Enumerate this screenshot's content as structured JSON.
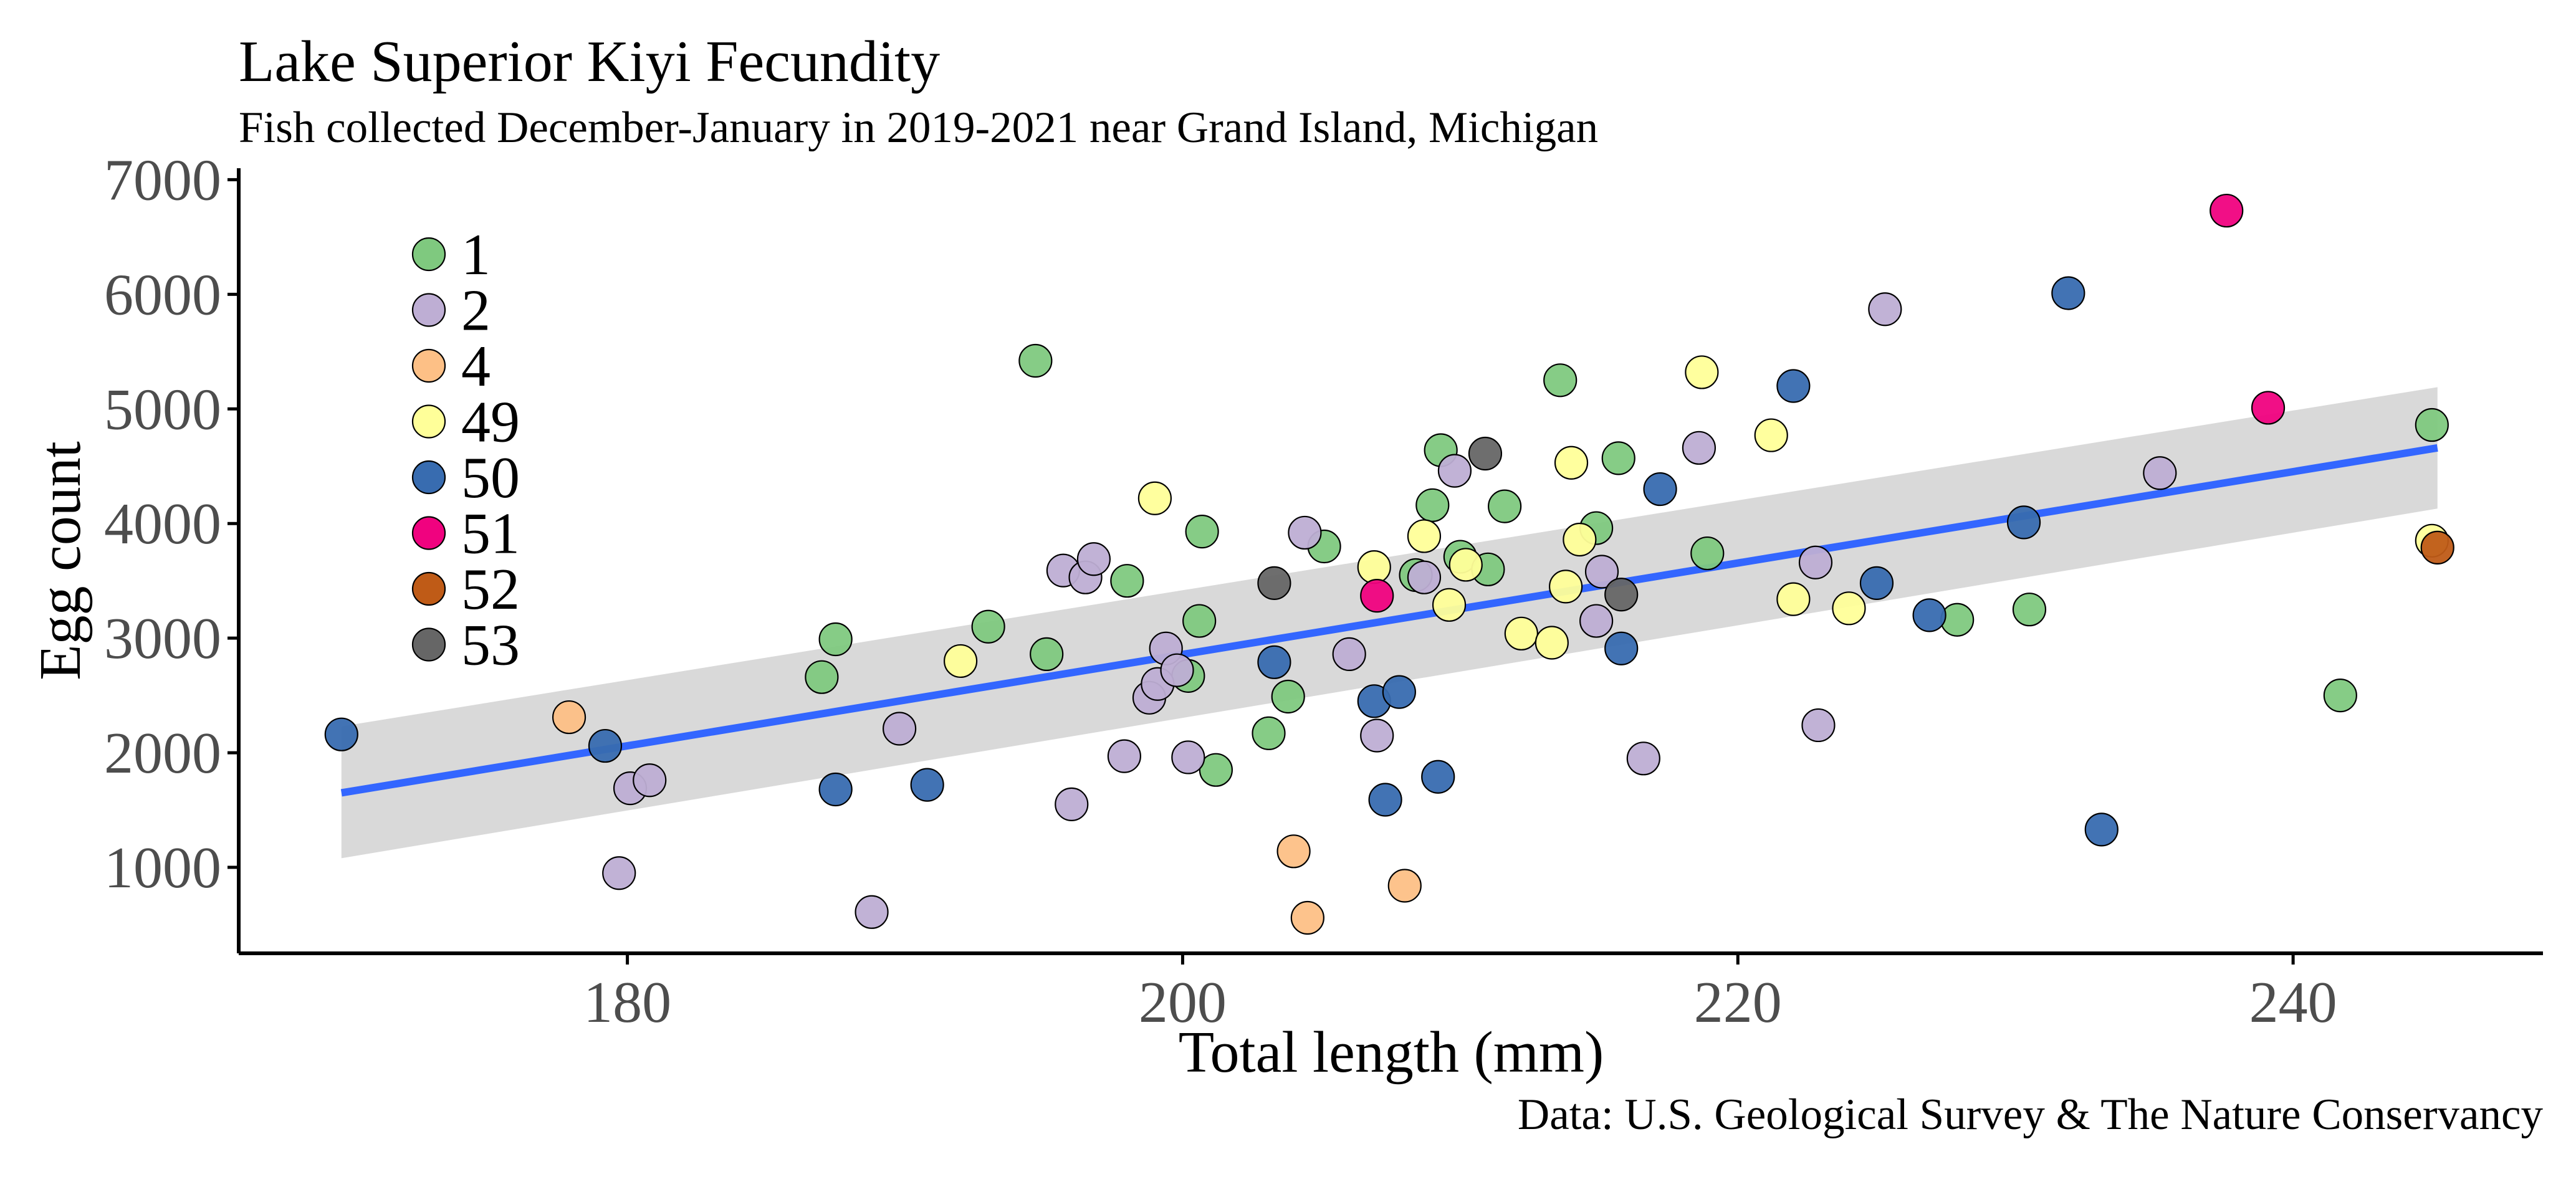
{
  "chart_data": {
    "type": "scatter",
    "title": "Lake Superior Kiyi Fecundity",
    "subtitle": "Fish collected December-January in 2019-2021 near Grand Island, Michigan",
    "xlabel": "Total length (mm)",
    "ylabel": "Egg count",
    "caption": "Data: U.S. Geological Survey & The Nature Conservancy",
    "xlim": [
      166,
      249
    ],
    "ylim": [
      250,
      7100
    ],
    "xticks": [
      180,
      200,
      220,
      240
    ],
    "yticks": [
      1000,
      2000,
      3000,
      4000,
      5000,
      6000,
      7000
    ],
    "grid": false,
    "legend_position": "top-left",
    "series": [
      {
        "name": "1",
        "color": "#7fc97f",
        "points": [
          [
            194.7,
            5420
          ],
          [
            187.5,
            2990
          ],
          [
            187.0,
            2660
          ],
          [
            193.0,
            3100
          ],
          [
            195.1,
            2860
          ],
          [
            198.0,
            3500
          ],
          [
            200.7,
            3930
          ],
          [
            200.6,
            3150
          ],
          [
            200.2,
            2670
          ],
          [
            201.2,
            1850
          ],
          [
            203.1,
            2170
          ],
          [
            203.8,
            2490
          ],
          [
            205.1,
            3800
          ],
          [
            208.4,
            3550
          ],
          [
            209.0,
            4160
          ],
          [
            209.3,
            4640
          ],
          [
            210.0,
            3710
          ],
          [
            211.0,
            3600
          ],
          [
            211.6,
            4150
          ],
          [
            213.6,
            5250
          ],
          [
            214.9,
            3960
          ],
          [
            215.7,
            4570
          ],
          [
            218.9,
            3740
          ],
          [
            227.9,
            3160
          ],
          [
            230.5,
            3250
          ],
          [
            241.7,
            2500
          ],
          [
            245.0,
            4860
          ]
        ]
      },
      {
        "name": "2",
        "color": "#beaed4",
        "points": [
          [
            179.7,
            950
          ],
          [
            180.1,
            1690
          ],
          [
            180.8,
            1760
          ],
          [
            188.8,
            610
          ],
          [
            189.8,
            2210
          ],
          [
            195.7,
            3590
          ],
          [
            196.0,
            1550
          ],
          [
            196.5,
            3530
          ],
          [
            196.8,
            3690
          ],
          [
            197.9,
            1970
          ],
          [
            198.8,
            2480
          ],
          [
            199.1,
            2600
          ],
          [
            199.4,
            2910
          ],
          [
            199.8,
            2720
          ],
          [
            200.2,
            1960
          ],
          [
            204.4,
            3920
          ],
          [
            206.0,
            2860
          ],
          [
            207.0,
            2150
          ],
          [
            208.7,
            3530
          ],
          [
            209.8,
            4460
          ],
          [
            214.9,
            3150
          ],
          [
            215.1,
            3580
          ],
          [
            216.6,
            1950
          ],
          [
            218.6,
            4660
          ],
          [
            222.9,
            2240
          ],
          [
            222.8,
            3660
          ],
          [
            225.3,
            5870
          ],
          [
            235.2,
            4440
          ]
        ]
      },
      {
        "name": "4",
        "color": "#fdc086",
        "points": [
          [
            177.9,
            2310
          ],
          [
            204.0,
            1140
          ],
          [
            204.5,
            560
          ],
          [
            208.0,
            840
          ]
        ]
      },
      {
        "name": "49",
        "color": "#ffff99",
        "points": [
          [
            192.0,
            2800
          ],
          [
            199.0,
            4220
          ],
          [
            206.9,
            3620
          ],
          [
            208.7,
            3890
          ],
          [
            209.6,
            3290
          ],
          [
            210.2,
            3640
          ],
          [
            212.2,
            3040
          ],
          [
            213.3,
            2960
          ],
          [
            213.8,
            3450
          ],
          [
            214.0,
            4530
          ],
          [
            214.3,
            3860
          ],
          [
            218.7,
            5320
          ],
          [
            221.2,
            4770
          ],
          [
            222.0,
            3340
          ],
          [
            224.0,
            3260
          ],
          [
            245.0,
            3850
          ]
        ]
      },
      {
        "name": "50",
        "color": "#386cb0",
        "points": [
          [
            169.7,
            2160
          ],
          [
            179.2,
            2060
          ],
          [
            187.5,
            1680
          ],
          [
            190.8,
            1720
          ],
          [
            203.3,
            2790
          ],
          [
            206.9,
            2450
          ],
          [
            207.3,
            1590
          ],
          [
            207.8,
            2530
          ],
          [
            209.2,
            1790
          ],
          [
            215.8,
            2910
          ],
          [
            217.2,
            4300
          ],
          [
            222.0,
            5200
          ],
          [
            225.0,
            3480
          ],
          [
            226.9,
            3200
          ],
          [
            230.3,
            4010
          ],
          [
            231.9,
            6010
          ],
          [
            233.1,
            1330
          ]
        ]
      },
      {
        "name": "51",
        "color": "#f0027f",
        "points": [
          [
            207.0,
            3370
          ],
          [
            237.6,
            6730
          ],
          [
            239.1,
            5010
          ]
        ]
      },
      {
        "name": "52",
        "color": "#bf5b17",
        "points": [
          [
            245.2,
            3790
          ]
        ]
      },
      {
        "name": "53",
        "color": "#666666",
        "points": [
          [
            203.3,
            3480
          ],
          [
            210.9,
            4610
          ],
          [
            215.8,
            3380
          ]
        ]
      }
    ],
    "trend_line": {
      "type": "linear",
      "color": "#3366ff",
      "x": [
        169.7,
        245.2
      ],
      "y": [
        1650,
        4660
      ],
      "ci_lower": [
        1080,
        4130
      ],
      "ci_upper": [
        2230,
        5190
      ],
      "ci_color": "#d9d9d9"
    }
  }
}
